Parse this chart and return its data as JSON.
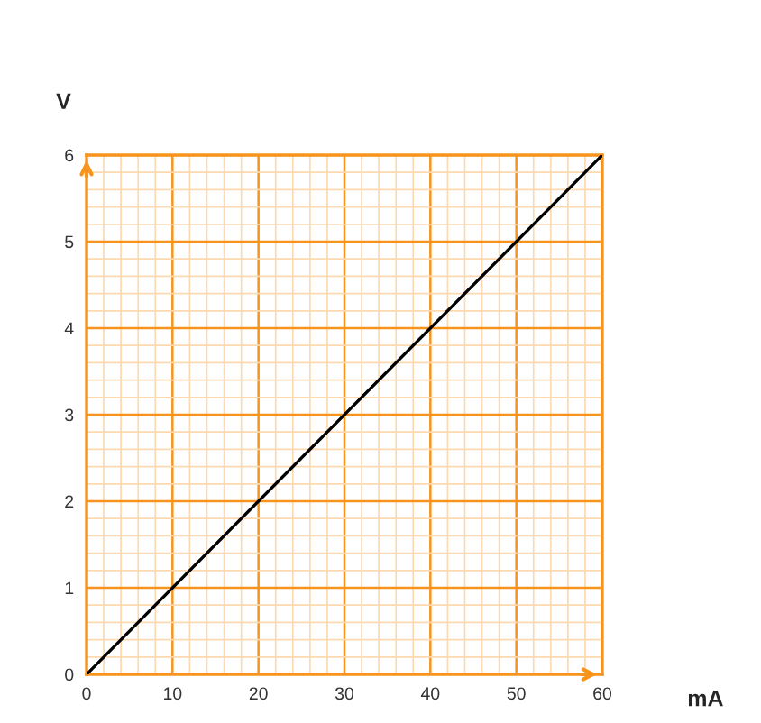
{
  "chart_data": {
    "type": "line",
    "xlabel": "mA",
    "ylabel": "V",
    "x": [
      0,
      60
    ],
    "series": [
      {
        "color": "#000000",
        "values": [
          0,
          6
        ]
      }
    ],
    "xlim": [
      0,
      60
    ],
    "ylim": [
      0,
      6
    ],
    "xticks": [
      0,
      {
        "value": 2,
        "label": null
      },
      {
        "value": 4,
        "label": null
      },
      {
        "value": 6,
        "label": null
      },
      {
        "value": 8,
        "label": null
      },
      10,
      {
        "value": 12,
        "label": null
      },
      {
        "value": 14,
        "label": null
      },
      {
        "value": 16,
        "label": null
      },
      {
        "value": 18,
        "label": null
      },
      20,
      {
        "value": 22,
        "label": null
      },
      {
        "value": 24,
        "label": null
      },
      {
        "value": 26,
        "label": null
      },
      {
        "value": 28,
        "label": null
      },
      30,
      {
        "value": 32,
        "label": null
      },
      {
        "value": 34,
        "label": null
      },
      {
        "value": 36,
        "label": null
      },
      {
        "value": 38,
        "label": null
      },
      40,
      {
        "value": 42,
        "label": null
      },
      {
        "value": 44,
        "label": null
      },
      {
        "value": 46,
        "label": null
      },
      {
        "value": 48,
        "label": null
      },
      50,
      {
        "value": 52,
        "label": null
      },
      {
        "value": 54,
        "label": null
      },
      {
        "value": 56,
        "label": null
      },
      {
        "value": 58,
        "label": null
      },
      60
    ],
    "yticks": [
      0,
      {
        "value": 0.2,
        "label": null
      },
      {
        "value": 0.4,
        "label": null
      },
      {
        "value": 0.6,
        "label": null
      },
      {
        "value": 0.8,
        "label": null
      },
      1,
      {
        "value": 1.2,
        "label": null
      },
      {
        "value": 1.4,
        "label": null
      },
      {
        "value": 1.6,
        "label": null
      },
      {
        "value": 1.8,
        "label": null
      },
      2,
      {
        "value": 2.2,
        "label": null
      },
      {
        "value": 2.4,
        "label": null
      },
      {
        "value": 2.6,
        "label": null
      },
      {
        "value": 2.8,
        "label": null
      },
      3,
      {
        "value": 3.2,
        "label": null
      },
      {
        "value": 3.4,
        "label": null
      },
      {
        "value": 3.6,
        "label": null
      },
      {
        "value": 3.8,
        "label": null
      },
      4,
      {
        "value": 4.2,
        "label": null
      },
      {
        "value": 4.4,
        "label": null
      },
      {
        "value": 4.6,
        "label": null
      },
      {
        "value": 4.8,
        "label": null
      },
      5,
      {
        "value": 5.2,
        "label": null
      },
      {
        "value": 5.4,
        "label": null
      },
      {
        "value": 5.6,
        "label": null
      },
      {
        "value": 5.8,
        "label": null
      },
      6
    ],
    "grid": true,
    "marker": "none",
    "line_style": "solid",
    "legend": false
  }
}
